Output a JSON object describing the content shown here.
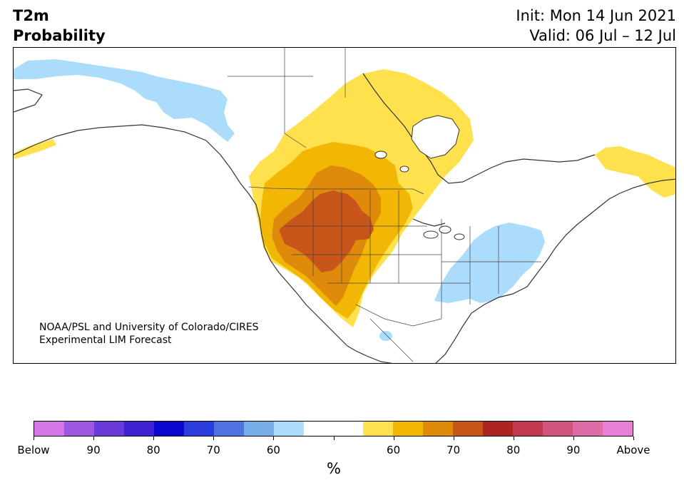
{
  "header": {
    "title_line1": "T2m",
    "title_line2": "Probability",
    "init_text": "Init: Mon 14 Jun 2021",
    "valid_text": "Valid: 06 Jul – 12 Jul"
  },
  "map": {
    "credit_line1": "NOAA/PSL and University of Colorado/CIRES",
    "credit_line2": "Experimental LIM Forecast",
    "region": "North America",
    "colors": {
      "above_55": "#ffe14d",
      "above_60": "#f2b705",
      "above_65": "#e08a0c",
      "above_70": "#c8551a",
      "below_55": "#abdcfc"
    }
  },
  "colorbar": {
    "units": "%",
    "colors": [
      "#d676e8",
      "#9e57e0",
      "#6a3ad9",
      "#3f22d4",
      "#0a08d0",
      "#2a3cde",
      "#4f73e0",
      "#77ade8",
      "#abdcfc",
      "#ffffff",
      "#ffffff",
      "#ffe14d",
      "#f2b705",
      "#e08a0c",
      "#c8551a",
      "#ae2323",
      "#c23a4f",
      "#d1547c",
      "#df6aa8",
      "#e87fd6"
    ],
    "labels": [
      "Below",
      "90",
      "80",
      "70",
      "60",
      "",
      "60",
      "70",
      "80",
      "90",
      "Above"
    ]
  }
}
